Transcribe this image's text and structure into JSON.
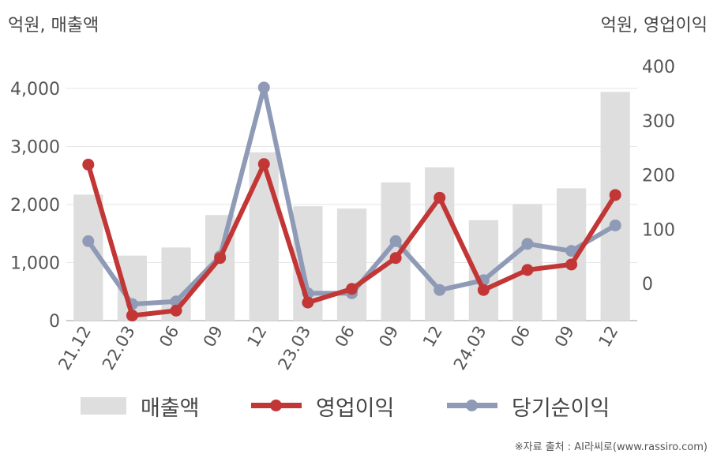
{
  "units": {
    "left": "억원, 매출액",
    "right": "억원, 영업이익"
  },
  "source_note": "※자료 출처 : AI라씨로(www.rassiro.com)",
  "colors": {
    "bar": "#dedede",
    "operating_profit": "#c23636",
    "net_income": "#8f9bb6",
    "grid": "#e6e6e6",
    "axis": "#bbbbbb"
  },
  "legend": [
    {
      "label": "매출액",
      "kind": "bar",
      "color": "#dedede"
    },
    {
      "label": "영업이익",
      "kind": "line",
      "color": "#c23636"
    },
    {
      "label": "당기순이익",
      "kind": "line",
      "color": "#8f9bb6"
    }
  ],
  "chart_data": {
    "type": "bar+line",
    "categories": [
      "21.12",
      "22.03",
      "06",
      "09",
      "12",
      "23.03",
      "06",
      "09",
      "12",
      "24.03",
      "06",
      "09",
      "12"
    ],
    "left_axis": {
      "ticks": [
        "0",
        "1,000",
        "2,000",
        "3,000",
        "4,000"
      ],
      "tick_values": [
        0,
        1000,
        2000,
        3000,
        4000
      ],
      "ylim": [
        0,
        4000
      ]
    },
    "right_axis": {
      "ticks": [
        "0",
        "100",
        "200",
        "300",
        "400"
      ],
      "tick_values": [
        0,
        100,
        200,
        300,
        400
      ],
      "ylim": [
        -70,
        400
      ]
    },
    "series": [
      {
        "name": "매출액",
        "type": "bar",
        "axis": "left",
        "values": [
          2170,
          1120,
          1260,
          1820,
          2900,
          1970,
          1930,
          2380,
          2640,
          1730,
          2010,
          2280,
          3940
        ]
      },
      {
        "name": "영업이익",
        "type": "line",
        "axis": "right",
        "values": [
          219,
          -59,
          -50,
          47,
          220,
          -35,
          -10,
          47,
          158,
          -12,
          25,
          35,
          163
        ]
      },
      {
        "name": "당기순이익",
        "type": "line",
        "axis": "right",
        "values": [
          78,
          -38,
          -33,
          50,
          361,
          -18,
          -18,
          78,
          -12,
          6,
          73,
          60,
          107
        ]
      }
    ],
    "grid": true,
    "legend_position": "bottom"
  }
}
